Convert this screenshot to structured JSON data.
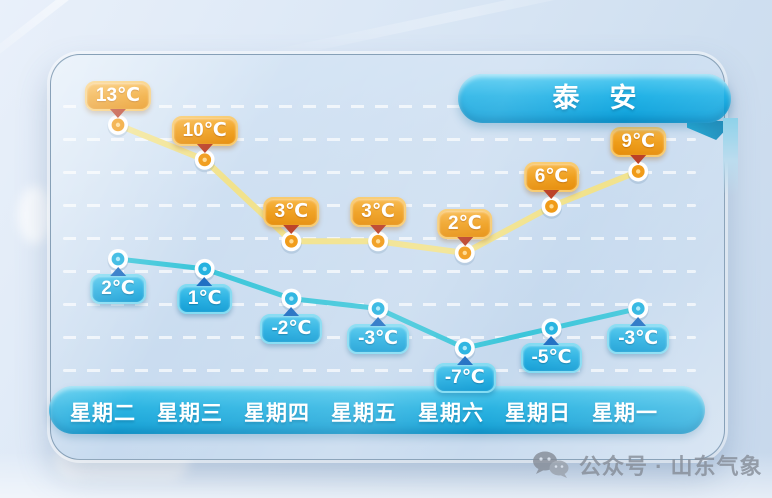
{
  "banner": {
    "title": "泰安"
  },
  "watermark": {
    "text": "公众号 · 山东气象",
    "icon": "wechat-icon"
  },
  "chart_data": {
    "type": "line",
    "title": "泰安",
    "categories": [
      "星期二",
      "星期三",
      "星期四",
      "星期五",
      "星期六",
      "星期日",
      "星期一"
    ],
    "unit": "℃",
    "series": [
      {
        "name": "high",
        "values": [
          13,
          10,
          3,
          3,
          2,
          6,
          9
        ],
        "labels": [
          "13℃",
          "10℃",
          "3℃",
          "3℃",
          "2℃",
          "6℃",
          "9℃"
        ],
        "line_color": "#f1e28c",
        "point_color": "#f0970f",
        "point_center_color": "#ffd88a",
        "label_color": "#ef9d18",
        "arrow_color": "#b93a20"
      },
      {
        "name": "low",
        "values": [
          2,
          1,
          -2,
          -3,
          -7,
          -5,
          -3
        ],
        "labels": [
          "2℃",
          "1℃",
          "-2℃",
          "-3℃",
          "-7℃",
          "-5℃",
          "-3℃"
        ],
        "line_color": "#3cc6da",
        "point_color": "#23b2e0",
        "point_center_color": "#a8e7f8",
        "label_color": "#27b0e2",
        "arrow_color": "#1e6ec2"
      }
    ],
    "ylim": [
      -8,
      14
    ],
    "grid": "horizontal-dashed",
    "legend": "none",
    "colors": {
      "banner_blue": "#1aa8de",
      "day_bar_blue": "#2cb4e2",
      "card_blue": "#c8dbee",
      "watermark_gray": "#858c97"
    }
  }
}
